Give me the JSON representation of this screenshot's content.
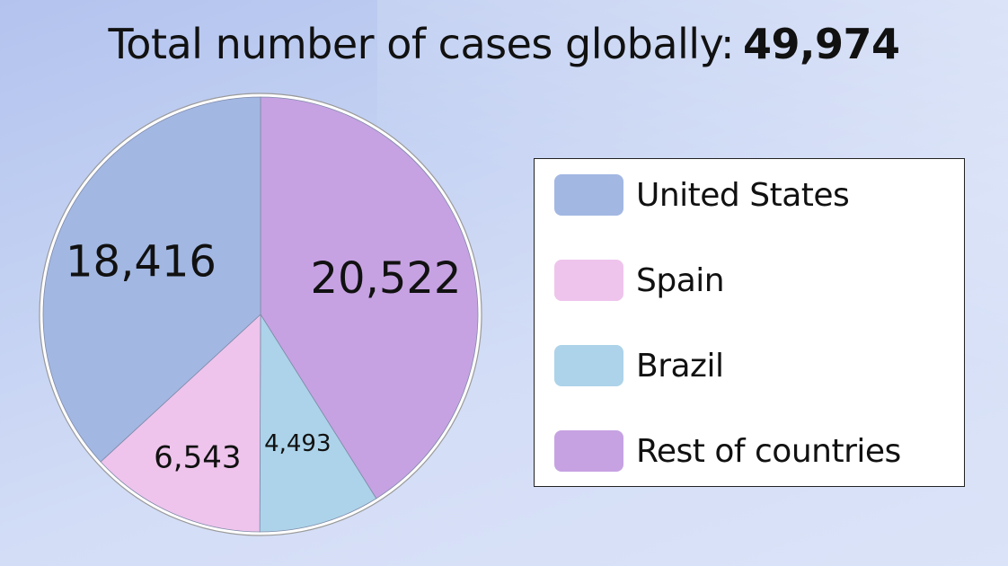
{
  "title": {
    "prefix": "Total number of cases globally:",
    "total": "49,974"
  },
  "chart_data": {
    "type": "pie",
    "title": "Total number of cases globally: 49,974",
    "slices": [
      {
        "name": "Rest of countries",
        "value": 20522,
        "label": "20,522",
        "color": "#c6a2e2"
      },
      {
        "name": "Brazil",
        "value": 4493,
        "label": "4,493",
        "color": "#acd3e9"
      },
      {
        "name": "Spain",
        "value": 6543,
        "label": "6,543",
        "color": "#eec4ec"
      },
      {
        "name": "United States",
        "value": 18416,
        "label": "18,416",
        "color": "#a2b7e2"
      }
    ],
    "legend": {
      "placement": "right",
      "items": [
        {
          "label": "United States",
          "color": "#a2b7e2"
        },
        {
          "label": "Spain",
          "color": "#eec4ec"
        },
        {
          "label": "Brazil",
          "color": "#acd3e9"
        },
        {
          "label": "Rest of countries",
          "color": "#c6a2e2"
        }
      ]
    }
  }
}
